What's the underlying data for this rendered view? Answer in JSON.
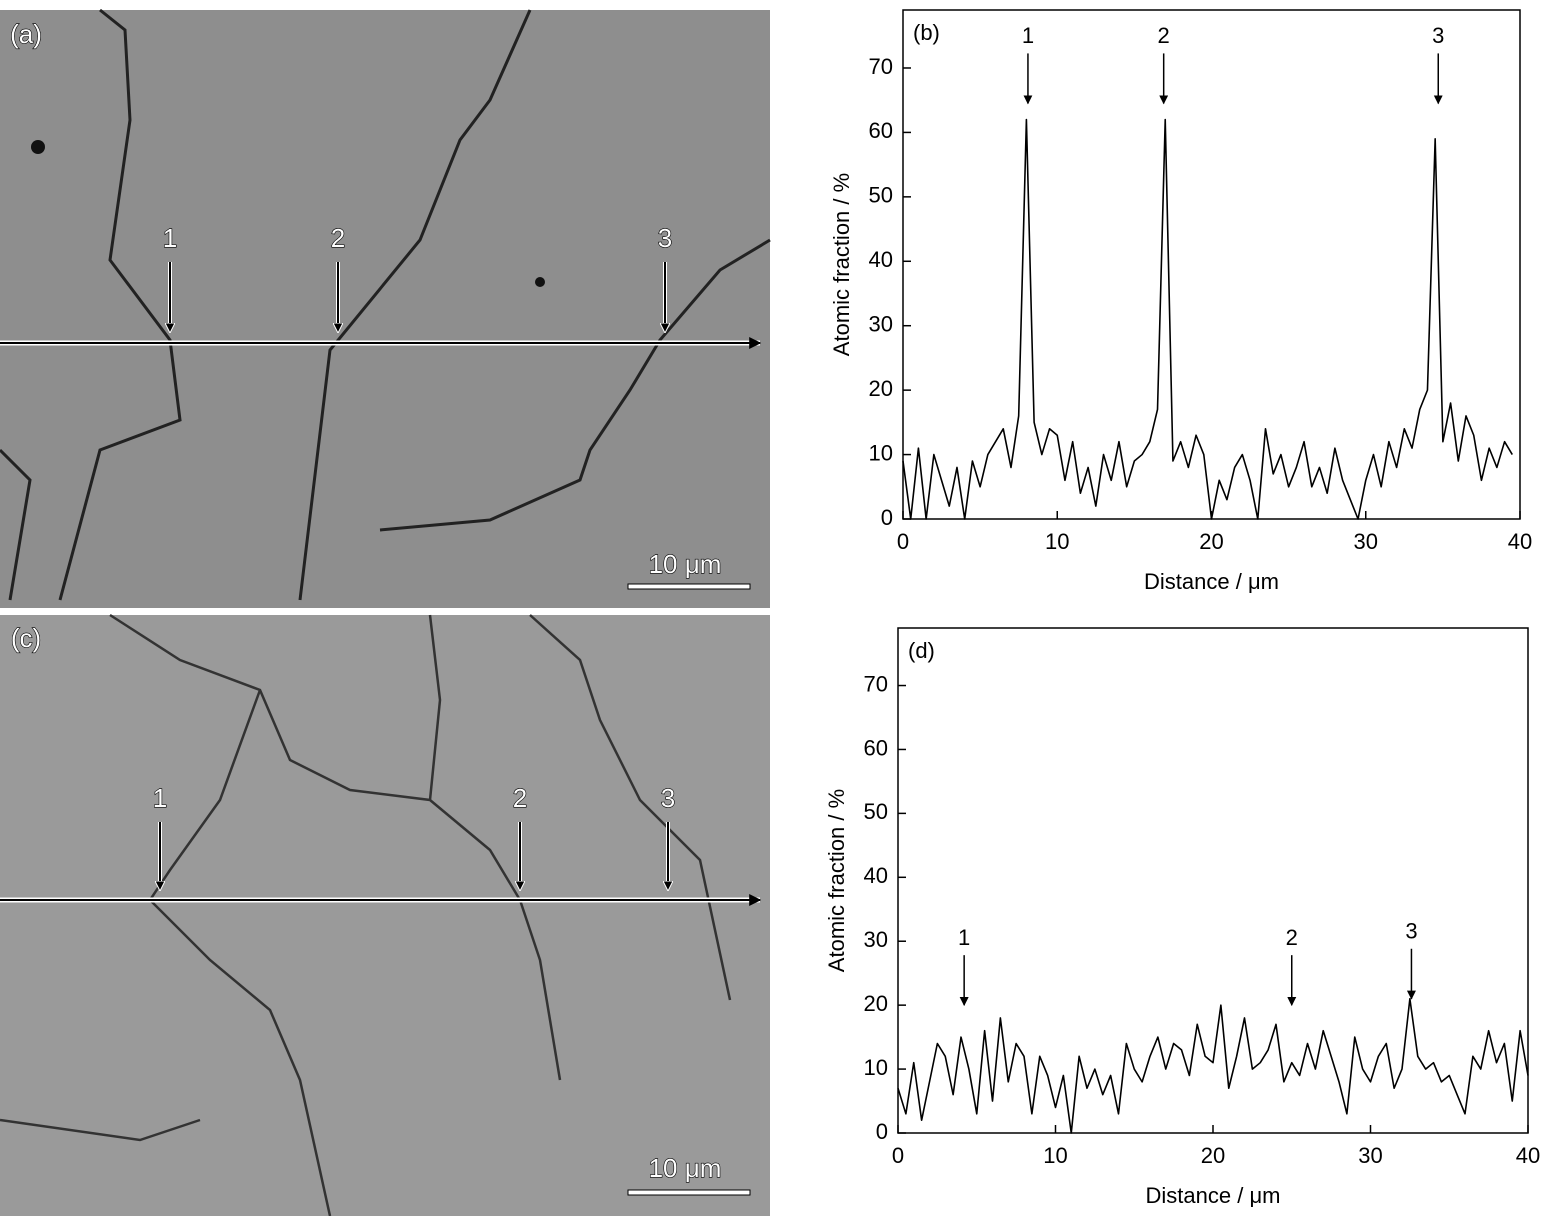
{
  "micrographs": [
    {
      "label": "(a)",
      "markers": [
        "1",
        "2",
        "3"
      ],
      "scale_bar": "10 μm"
    },
    {
      "label": "(c)",
      "markers": [
        "1",
        "2",
        "3"
      ],
      "scale_bar": "10 μm"
    }
  ],
  "chart_data": [
    {
      "type": "line",
      "panel": "(b)",
      "x_label": "Distance / μm",
      "y_label": "Atomic fraction / %",
      "color": "#000000",
      "xlim": [
        0,
        40
      ],
      "ylim": [
        0,
        79
      ],
      "xticks": [
        0,
        10,
        20,
        30,
        40
      ],
      "yticks": [
        0,
        10,
        20,
        30,
        40,
        50,
        60,
        70
      ],
      "x": [
        0,
        0.5,
        1,
        1.5,
        2,
        2.5,
        3,
        3.5,
        4,
        4.5,
        5,
        5.5,
        6,
        6.5,
        7,
        7.5,
        8,
        8.5,
        9,
        9.5,
        10,
        10.5,
        11,
        11.5,
        12,
        12.5,
        13,
        13.5,
        14,
        14.5,
        15,
        15.5,
        16,
        16.5,
        17,
        17.5,
        18,
        18.5,
        19,
        19.5,
        20,
        20.5,
        21,
        21.5,
        22,
        22.5,
        23,
        23.5,
        24,
        24.5,
        25,
        25.5,
        26,
        26.5,
        27,
        27.5,
        28,
        28.5,
        29,
        29.5,
        30,
        30.5,
        31,
        31.5,
        32,
        32.5,
        33,
        33.5,
        34,
        34.5,
        35,
        35.5,
        36,
        36.5,
        37,
        37.5,
        38,
        38.5,
        39,
        39.5
      ],
      "values": [
        9,
        0,
        11,
        0,
        10,
        6,
        2,
        8,
        0,
        9,
        5,
        10,
        12,
        14,
        8,
        16,
        62,
        15,
        10,
        14,
        13,
        6,
        12,
        4,
        8,
        2,
        10,
        6,
        12,
        5,
        9,
        10,
        12,
        17,
        62,
        9,
        12,
        8,
        13,
        10,
        0,
        6,
        3,
        8,
        10,
        6,
        0,
        14,
        7,
        10,
        5,
        8,
        12,
        5,
        8,
        4,
        11,
        6,
        3,
        0,
        6,
        10,
        5,
        12,
        8,
        14,
        11,
        17,
        20,
        59,
        12,
        18,
        9,
        16,
        13,
        6,
        11,
        8,
        12,
        10
      ],
      "annotations": [
        {
          "text": "1",
          "x": 8.1,
          "y": 64.5
        },
        {
          "text": "2",
          "x": 16.9,
          "y": 64.5
        },
        {
          "text": "3",
          "x": 34.7,
          "y": 64.5
        }
      ]
    },
    {
      "type": "line",
      "panel": "(d)",
      "x_label": "Distance / μm",
      "y_label": "Atomic fraction /  %",
      "color": "#000000",
      "xlim": [
        0,
        40
      ],
      "ylim": [
        0,
        79
      ],
      "xticks": [
        0,
        10,
        20,
        30,
        40
      ],
      "yticks": [
        0,
        10,
        20,
        30,
        40,
        50,
        60,
        70
      ],
      "x": [
        0,
        0.5,
        1,
        1.5,
        2,
        2.5,
        3,
        3.5,
        4,
        4.5,
        5,
        5.5,
        6,
        6.5,
        7,
        7.5,
        8,
        8.5,
        9,
        9.5,
        10,
        10.5,
        11,
        11.5,
        12,
        12.5,
        13,
        13.5,
        14,
        14.5,
        15,
        15.5,
        16,
        16.5,
        17,
        17.5,
        18,
        18.5,
        19,
        19.5,
        20,
        20.5,
        21,
        21.5,
        22,
        22.5,
        23,
        23.5,
        24,
        24.5,
        25,
        25.5,
        26,
        26.5,
        27,
        27.5,
        28,
        28.5,
        29,
        29.5,
        30,
        30.5,
        31,
        31.5,
        32,
        32.5,
        33,
        33.5,
        34,
        34.5,
        35,
        35.5,
        36,
        36.5,
        37,
        37.5,
        38,
        38.5,
        39,
        39.5,
        40
      ],
      "values": [
        7,
        3,
        11,
        2,
        8,
        14,
        12,
        6,
        15,
        10,
        3,
        16,
        5,
        18,
        8,
        14,
        12,
        3,
        12,
        9,
        4,
        9,
        0,
        12,
        7,
        10,
        6,
        9,
        3,
        14,
        10,
        8,
        12,
        15,
        10,
        14,
        13,
        9,
        17,
        12,
        11,
        20,
        7,
        12,
        18,
        10,
        11,
        13,
        17,
        8,
        11,
        9,
        14,
        10,
        16,
        12,
        8,
        3,
        15,
        10,
        8,
        12,
        14,
        7,
        10,
        21,
        12,
        10,
        11,
        8,
        9,
        6,
        3,
        12,
        10,
        16,
        11,
        14,
        5,
        16,
        9
      ],
      "annotations": [
        {
          "text": "1",
          "x": 4.2,
          "y": 20
        },
        {
          "text": "2",
          "x": 25,
          "y": 20
        },
        {
          "text": "3",
          "x": 32.6,
          "y": 21
        }
      ]
    }
  ]
}
